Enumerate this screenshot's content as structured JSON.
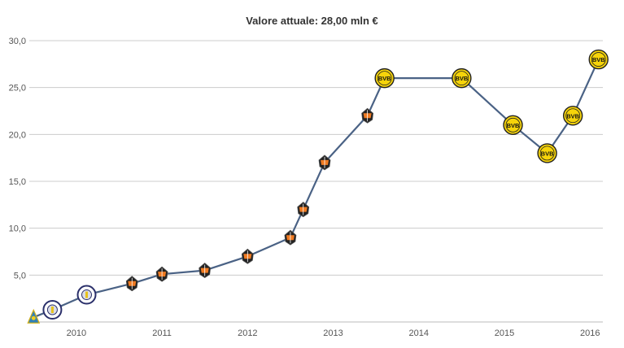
{
  "chart_data": {
    "type": "line",
    "title": "Valore attuale: 28,00 mln €",
    "xlabel": "",
    "ylabel": "",
    "ylim": [
      0,
      30
    ],
    "xlim": [
      2009.45,
      2016.15
    ],
    "grid": true,
    "y_ticks": [
      "5,0",
      "10,0",
      "15,0",
      "20,0",
      "25,0",
      "30,0"
    ],
    "x_ticks": [
      "2010",
      "2011",
      "2012",
      "2013",
      "2014",
      "2015",
      "2016"
    ],
    "colors": {
      "line": "#4a6285",
      "grid": "#cccccc",
      "bvb": "#f6d40a",
      "bvb_text": "#111111",
      "shakhtar": "#f07b22",
      "small_club": "#2a2f6a"
    },
    "series": [
      {
        "points": [
          {
            "x": 2009.5,
            "y": 0.5,
            "club": "club-a"
          },
          {
            "x": 2009.72,
            "y": 1.3,
            "club": "club-b"
          },
          {
            "x": 2010.12,
            "y": 2.9,
            "club": "club-b"
          },
          {
            "x": 2010.65,
            "y": 4.1,
            "club": "shakhtar"
          },
          {
            "x": 2011.0,
            "y": 5.1,
            "club": "shakhtar"
          },
          {
            "x": 2011.5,
            "y": 5.5,
            "club": "shakhtar"
          },
          {
            "x": 2012.0,
            "y": 7.0,
            "club": "shakhtar"
          },
          {
            "x": 2012.5,
            "y": 9.0,
            "club": "shakhtar"
          },
          {
            "x": 2012.65,
            "y": 12.0,
            "club": "shakhtar"
          },
          {
            "x": 2012.9,
            "y": 17.0,
            "club": "shakhtar"
          },
          {
            "x": 2013.4,
            "y": 22.0,
            "club": "shakhtar"
          },
          {
            "x": 2013.6,
            "y": 26.0,
            "club": "bvb"
          },
          {
            "x": 2014.5,
            "y": 26.0,
            "club": "bvb"
          },
          {
            "x": 2015.1,
            "y": 21.0,
            "club": "bvb"
          },
          {
            "x": 2015.5,
            "y": 18.0,
            "club": "bvb"
          },
          {
            "x": 2015.8,
            "y": 22.0,
            "club": "bvb"
          },
          {
            "x": 2016.1,
            "y": 28.0,
            "club": "bvb"
          }
        ]
      }
    ]
  }
}
